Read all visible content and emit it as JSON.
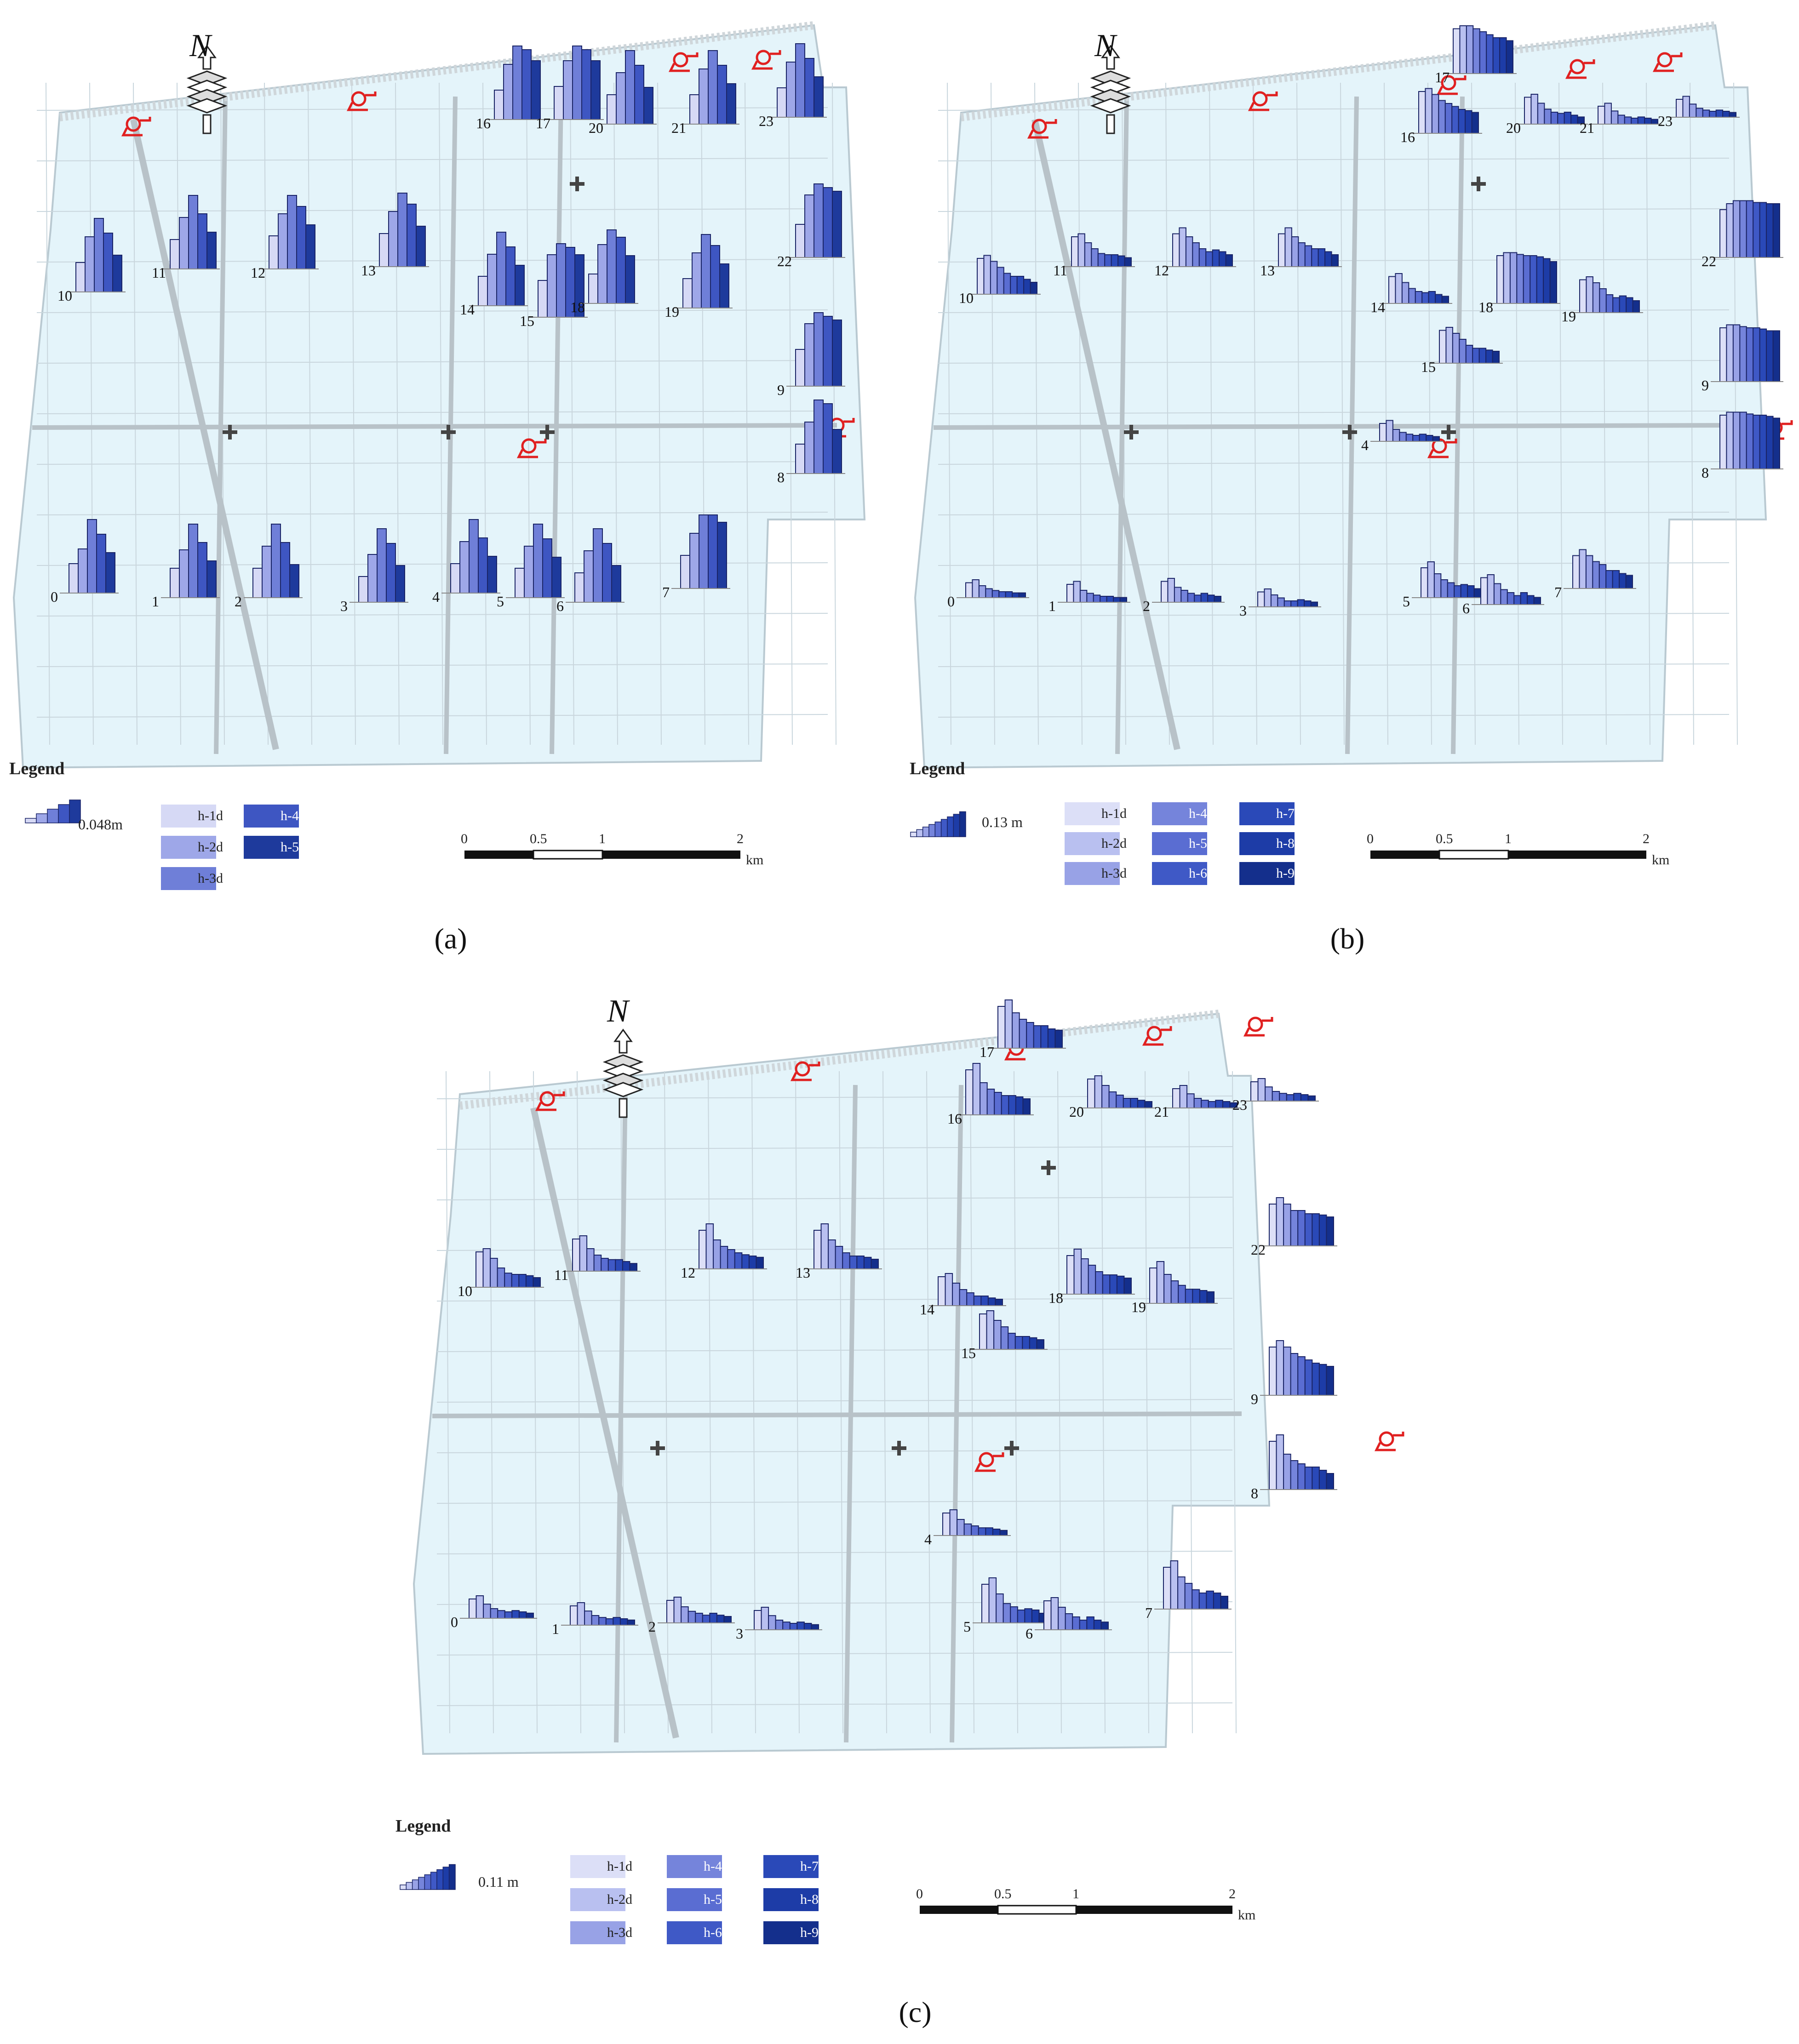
{
  "panels": [
    {
      "id": "a",
      "caption": "(a)",
      "legend": {
        "title": "Legend",
        "value": "0.048m",
        "items": [
          "h-1d",
          "h-4d",
          "h-2d",
          "h-5d",
          "h-3d"
        ]
      },
      "scale": {
        "ticks": [
          "0",
          "0.5",
          "1",
          "2"
        ],
        "unit": "km"
      },
      "north": "N",
      "stations": [
        {
          "id": "0",
          "values": [
            0.4,
            0.6,
            1.0,
            0.8,
            0.55
          ]
        },
        {
          "id": "1",
          "values": [
            0.4,
            0.65,
            1.0,
            0.75,
            0.5
          ]
        },
        {
          "id": "2",
          "values": [
            0.4,
            0.7,
            1.0,
            0.75,
            0.45
          ]
        },
        {
          "id": "3",
          "values": [
            0.35,
            0.65,
            1.0,
            0.8,
            0.5
          ]
        },
        {
          "id": "4",
          "values": [
            0.4,
            0.7,
            1.0,
            0.75,
            0.5
          ]
        },
        {
          "id": "5",
          "values": [
            0.4,
            0.7,
            1.0,
            0.8,
            0.55
          ]
        },
        {
          "id": "6",
          "values": [
            0.4,
            0.7,
            1.0,
            0.8,
            0.5
          ]
        },
        {
          "id": "7",
          "values": [
            0.45,
            0.75,
            1.0,
            1.0,
            0.9
          ]
        },
        {
          "id": "8",
          "values": [
            0.4,
            0.7,
            1.0,
            0.95,
            0.6
          ]
        },
        {
          "id": "9",
          "values": [
            0.5,
            0.85,
            1.0,
            0.95,
            0.9
          ]
        },
        {
          "id": "10",
          "values": [
            0.4,
            0.75,
            1.0,
            0.8,
            0.5
          ]
        },
        {
          "id": "11",
          "values": [
            0.4,
            0.7,
            1.0,
            0.75,
            0.5
          ]
        },
        {
          "id": "12",
          "values": [
            0.45,
            0.75,
            1.0,
            0.85,
            0.6
          ]
        },
        {
          "id": "13",
          "values": [
            0.45,
            0.75,
            1.0,
            0.85,
            0.55
          ]
        },
        {
          "id": "14",
          "values": [
            0.4,
            0.7,
            1.0,
            0.8,
            0.55
          ]
        },
        {
          "id": "15",
          "values": [
            0.5,
            0.85,
            1.0,
            0.95,
            0.85
          ]
        },
        {
          "id": "16",
          "values": [
            0.4,
            0.75,
            1.0,
            0.95,
            0.8
          ]
        },
        {
          "id": "17",
          "values": [
            0.45,
            0.8,
            1.0,
            0.95,
            0.8
          ]
        },
        {
          "id": "18",
          "values": [
            0.4,
            0.8,
            1.0,
            0.9,
            0.65
          ]
        },
        {
          "id": "19",
          "values": [
            0.4,
            0.75,
            1.0,
            0.85,
            0.6
          ]
        },
        {
          "id": "20",
          "values": [
            0.4,
            0.7,
            1.0,
            0.8,
            0.5
          ]
        },
        {
          "id": "21",
          "values": [
            0.4,
            0.75,
            1.0,
            0.8,
            0.55
          ]
        },
        {
          "id": "22",
          "values": [
            0.45,
            0.85,
            1.0,
            0.95,
            0.9
          ]
        },
        {
          "id": "23",
          "values": [
            0.4,
            0.75,
            1.0,
            0.8,
            0.55
          ]
        }
      ]
    },
    {
      "id": "b",
      "caption": "(b)",
      "legend": {
        "title": "Legend",
        "value": "0.13 m",
        "items": [
          "h-1d",
          "h-4d",
          "h-7d",
          "h-2d",
          "h-5d",
          "h-8d",
          "h-3d",
          "h-6d",
          "h-9d"
        ]
      },
      "scale": {
        "ticks": [
          "0",
          "0.5",
          "1",
          "2"
        ],
        "unit": "km"
      },
      "north": "N",
      "stations": [
        {
          "id": "0",
          "values": [
            0.25,
            0.3,
            0.2,
            0.15,
            0.12,
            0.1,
            0.1,
            0.08,
            0.08
          ]
        },
        {
          "id": "1",
          "values": [
            0.3,
            0.35,
            0.2,
            0.15,
            0.12,
            0.1,
            0.1,
            0.08,
            0.08
          ]
        },
        {
          "id": "2",
          "values": [
            0.35,
            0.4,
            0.25,
            0.2,
            0.15,
            0.12,
            0.15,
            0.12,
            0.1
          ]
        },
        {
          "id": "3",
          "values": [
            0.25,
            0.3,
            0.2,
            0.15,
            0.1,
            0.1,
            0.12,
            0.1,
            0.08
          ]
        },
        {
          "id": "4",
          "values": [
            0.3,
            0.35,
            0.2,
            0.15,
            0.12,
            0.1,
            0.12,
            0.1,
            0.08
          ]
        },
        {
          "id": "5",
          "values": [
            0.5,
            0.6,
            0.4,
            0.3,
            0.25,
            0.2,
            0.22,
            0.2,
            0.15
          ]
        },
        {
          "id": "6",
          "values": [
            0.45,
            0.5,
            0.35,
            0.25,
            0.2,
            0.15,
            0.2,
            0.15,
            0.12
          ]
        },
        {
          "id": "7",
          "values": [
            0.55,
            0.65,
            0.55,
            0.45,
            0.4,
            0.3,
            0.3,
            0.25,
            0.22
          ]
        },
        {
          "id": "8",
          "values": [
            0.9,
            0.95,
            0.95,
            0.95,
            0.92,
            0.9,
            0.9,
            0.88,
            0.85
          ]
        },
        {
          "id": "9",
          "values": [
            0.9,
            0.95,
            0.95,
            0.92,
            0.9,
            0.9,
            0.88,
            0.85,
            0.85
          ]
        },
        {
          "id": "10",
          "values": [
            0.6,
            0.65,
            0.55,
            0.45,
            0.35,
            0.3,
            0.3,
            0.25,
            0.2
          ]
        },
        {
          "id": "11",
          "values": [
            0.5,
            0.55,
            0.4,
            0.3,
            0.22,
            0.2,
            0.2,
            0.18,
            0.15
          ]
        },
        {
          "id": "12",
          "values": [
            0.55,
            0.65,
            0.5,
            0.4,
            0.3,
            0.25,
            0.28,
            0.25,
            0.2
          ]
        },
        {
          "id": "13",
          "values": [
            0.55,
            0.65,
            0.5,
            0.4,
            0.35,
            0.3,
            0.3,
            0.25,
            0.2
          ]
        },
        {
          "id": "14",
          "values": [
            0.45,
            0.5,
            0.35,
            0.25,
            0.2,
            0.18,
            0.2,
            0.15,
            0.12
          ]
        },
        {
          "id": "15",
          "values": [
            0.55,
            0.6,
            0.5,
            0.4,
            0.3,
            0.25,
            0.25,
            0.22,
            0.2
          ]
        },
        {
          "id": "16",
          "values": [
            0.7,
            0.75,
            0.65,
            0.55,
            0.5,
            0.45,
            0.4,
            0.38,
            0.35
          ]
        },
        {
          "id": "17",
          "values": [
            0.75,
            0.8,
            0.8,
            0.75,
            0.7,
            0.65,
            0.6,
            0.6,
            0.55
          ]
        },
        {
          "id": "18",
          "values": [
            0.8,
            0.85,
            0.85,
            0.82,
            0.8,
            0.8,
            0.78,
            0.75,
            0.7
          ]
        },
        {
          "id": "19",
          "values": [
            0.55,
            0.6,
            0.5,
            0.4,
            0.3,
            0.25,
            0.28,
            0.25,
            0.2
          ]
        },
        {
          "id": "20",
          "values": [
            0.45,
            0.5,
            0.35,
            0.25,
            0.2,
            0.18,
            0.2,
            0.15,
            0.12
          ]
        },
        {
          "id": "21",
          "values": [
            0.3,
            0.35,
            0.22,
            0.15,
            0.12,
            0.1,
            0.12,
            0.1,
            0.08
          ]
        },
        {
          "id": "22",
          "values": [
            0.8,
            0.9,
            0.95,
            0.95,
            0.95,
            0.92,
            0.92,
            0.9,
            0.9
          ]
        },
        {
          "id": "23",
          "values": [
            0.3,
            0.35,
            0.22,
            0.15,
            0.12,
            0.1,
            0.12,
            0.1,
            0.08
          ]
        }
      ]
    },
    {
      "id": "c",
      "caption": "(c)",
      "legend": {
        "title": "Legend",
        "value": "0.11 m",
        "items": [
          "h-1d",
          "h-4d",
          "h-7d",
          "h-2d",
          "h-5d",
          "h-8d",
          "h-3d",
          "h-6d",
          "h-9d"
        ]
      },
      "scale": {
        "ticks": [
          "0",
          "0.5",
          "1",
          "2"
        ],
        "unit": "km"
      },
      "north": "N",
      "stations": [
        {
          "id": "0",
          "values": [
            0.3,
            0.35,
            0.22,
            0.15,
            0.12,
            0.1,
            0.12,
            0.1,
            0.08
          ]
        },
        {
          "id": "1",
          "values": [
            0.3,
            0.35,
            0.22,
            0.15,
            0.12,
            0.1,
            0.12,
            0.1,
            0.08
          ]
        },
        {
          "id": "2",
          "values": [
            0.35,
            0.4,
            0.25,
            0.18,
            0.15,
            0.12,
            0.15,
            0.12,
            0.1
          ]
        },
        {
          "id": "3",
          "values": [
            0.3,
            0.35,
            0.22,
            0.15,
            0.12,
            0.1,
            0.12,
            0.1,
            0.08
          ]
        },
        {
          "id": "4",
          "values": [
            0.35,
            0.4,
            0.25,
            0.18,
            0.15,
            0.12,
            0.12,
            0.1,
            0.08
          ]
        },
        {
          "id": "5",
          "values": [
            0.6,
            0.7,
            0.45,
            0.3,
            0.25,
            0.2,
            0.22,
            0.2,
            0.15
          ]
        },
        {
          "id": "6",
          "values": [
            0.45,
            0.5,
            0.35,
            0.25,
            0.2,
            0.15,
            0.2,
            0.15,
            0.12
          ]
        },
        {
          "id": "7",
          "values": [
            0.65,
            0.75,
            0.5,
            0.4,
            0.3,
            0.25,
            0.28,
            0.25,
            0.2
          ]
        },
        {
          "id": "8",
          "values": [
            0.75,
            0.85,
            0.55,
            0.45,
            0.4,
            0.35,
            0.35,
            0.3,
            0.25
          ]
        },
        {
          "id": "9",
          "values": [
            0.75,
            0.85,
            0.75,
            0.65,
            0.6,
            0.55,
            0.5,
            0.48,
            0.45
          ]
        },
        {
          "id": "10",
          "values": [
            0.55,
            0.6,
            0.45,
            0.3,
            0.22,
            0.2,
            0.2,
            0.18,
            0.15
          ]
        },
        {
          "id": "11",
          "values": [
            0.5,
            0.55,
            0.35,
            0.25,
            0.2,
            0.18,
            0.18,
            0.15,
            0.12
          ]
        },
        {
          "id": "12",
          "values": [
            0.6,
            0.7,
            0.45,
            0.35,
            0.3,
            0.25,
            0.22,
            0.2,
            0.18
          ]
        },
        {
          "id": "13",
          "values": [
            0.6,
            0.7,
            0.45,
            0.35,
            0.25,
            0.2,
            0.2,
            0.18,
            0.15
          ]
        },
        {
          "id": "14",
          "values": [
            0.45,
            0.5,
            0.35,
            0.25,
            0.2,
            0.15,
            0.15,
            0.12,
            0.1
          ]
        },
        {
          "id": "15",
          "values": [
            0.55,
            0.6,
            0.45,
            0.35,
            0.25,
            0.2,
            0.2,
            0.18,
            0.15
          ]
        },
        {
          "id": "16",
          "values": [
            0.7,
            0.8,
            0.5,
            0.4,
            0.35,
            0.3,
            0.3,
            0.28,
            0.25
          ]
        },
        {
          "id": "17",
          "values": [
            0.65,
            0.75,
            0.55,
            0.45,
            0.4,
            0.35,
            0.35,
            0.3,
            0.28
          ]
        },
        {
          "id": "18",
          "values": [
            0.6,
            0.7,
            0.55,
            0.45,
            0.35,
            0.3,
            0.3,
            0.28,
            0.25
          ]
        },
        {
          "id": "19",
          "values": [
            0.55,
            0.65,
            0.45,
            0.35,
            0.28,
            0.22,
            0.22,
            0.2,
            0.18
          ]
        },
        {
          "id": "20",
          "values": [
            0.45,
            0.5,
            0.35,
            0.25,
            0.2,
            0.15,
            0.15,
            0.12,
            0.1
          ]
        },
        {
          "id": "21",
          "values": [
            0.3,
            0.35,
            0.22,
            0.15,
            0.12,
            0.1,
            0.12,
            0.1,
            0.08
          ]
        },
        {
          "id": "22",
          "values": [
            0.65,
            0.75,
            0.65,
            0.55,
            0.55,
            0.5,
            0.5,
            0.48,
            0.45
          ]
        },
        {
          "id": "23",
          "values": [
            0.3,
            0.35,
            0.22,
            0.15,
            0.12,
            0.1,
            0.12,
            0.1,
            0.08
          ]
        }
      ]
    }
  ],
  "colors": {
    "map_fill": "#e4f4fa",
    "map_stroke": "#b9c9d1",
    "grid_line": "#c9d6dd",
    "road": "#b8c2c8",
    "pump_icon": "#e02020",
    "bar_shades_5": [
      "#d6d9f5",
      "#9ea7e8",
      "#6f7fd8",
      "#3e56c2",
      "#1e3a9c"
    ],
    "bar_shades_9": [
      "#dcdff7",
      "#b9c0f0",
      "#98a2e6",
      "#7584db",
      "#5a6dd2",
      "#3f59c6",
      "#2a49b8",
      "#1d3ca7",
      "#142f8c"
    ]
  },
  "icons": {
    "north_arrow": "north-arrow-icon",
    "pump": "pump-station-icon",
    "cross": "crossroad-marker-icon"
  }
}
